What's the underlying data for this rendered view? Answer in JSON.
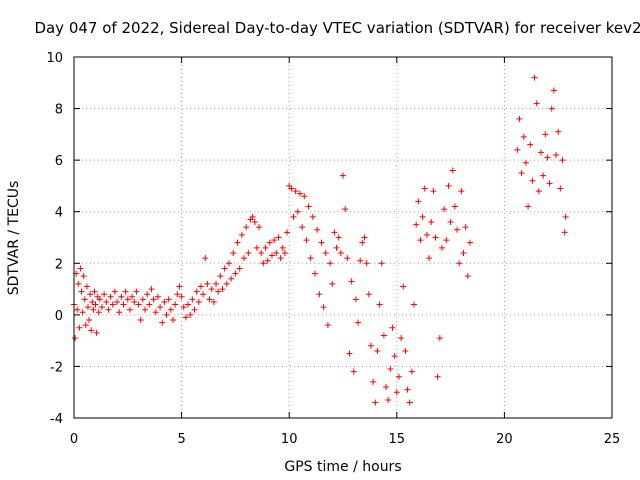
{
  "chart_data": {
    "type": "scatter",
    "title": "Day 047 of 2022, Sidereal Day-to-day VTEC variation (SDTVAR) for receiver kev2",
    "xlabel": "GPS time / hours",
    "ylabel": "SDTVAR / TECUs",
    "xlim": [
      0,
      25
    ],
    "ylim": [
      -4,
      10
    ],
    "xticks": [
      0,
      5,
      10,
      15,
      20,
      25
    ],
    "yticks": [
      -4,
      -2,
      0,
      2,
      4,
      6,
      8,
      10
    ],
    "grid": true,
    "marker": "+",
    "color": "#ff0000",
    "series": [
      {
        "name": "kev2",
        "points": [
          [
            0.0,
            0.4
          ],
          [
            0.05,
            -0.9
          ],
          [
            0.1,
            1.6
          ],
          [
            0.15,
            0.2
          ],
          [
            0.2,
            1.2
          ],
          [
            0.25,
            -0.5
          ],
          [
            0.3,
            1.8
          ],
          [
            0.35,
            0.9
          ],
          [
            0.4,
            0.1
          ],
          [
            0.45,
            1.5
          ],
          [
            0.5,
            0.6
          ],
          [
            0.55,
            -0.4
          ],
          [
            0.6,
            1.1
          ],
          [
            0.65,
            0.3
          ],
          [
            0.7,
            -0.2
          ],
          [
            0.75,
            0.8
          ],
          [
            0.8,
            -0.6
          ],
          [
            0.85,
            0.5
          ],
          [
            0.9,
            0.2
          ],
          [
            0.95,
            0.9
          ],
          [
            1.0,
            0.4
          ],
          [
            1.05,
            -0.7
          ],
          [
            1.1,
            0.7
          ],
          [
            1.15,
            0.1
          ],
          [
            1.2,
            0.6
          ],
          [
            1.3,
            0.3
          ],
          [
            1.4,
            0.8
          ],
          [
            1.5,
            0.5
          ],
          [
            1.6,
            0.2
          ],
          [
            1.7,
            0.7
          ],
          [
            1.8,
            0.4
          ],
          [
            1.9,
            0.9
          ],
          [
            2.0,
            0.5
          ],
          [
            2.1,
            0.1
          ],
          [
            2.2,
            0.7
          ],
          [
            2.3,
            0.4
          ],
          [
            2.4,
            0.9
          ],
          [
            2.5,
            0.6
          ],
          [
            2.6,
            0.2
          ],
          [
            2.7,
            0.7
          ],
          [
            2.8,
            0.5
          ],
          [
            2.9,
            0.9
          ],
          [
            3.0,
            0.4
          ],
          [
            3.1,
            -0.2
          ],
          [
            3.2,
            0.6
          ],
          [
            3.3,
            0.2
          ],
          [
            3.4,
            0.8
          ],
          [
            3.5,
            0.4
          ],
          [
            3.6,
            1.0
          ],
          [
            3.7,
            0.6
          ],
          [
            3.8,
            0.1
          ],
          [
            3.9,
            0.7
          ],
          [
            4.0,
            0.3
          ],
          [
            4.1,
            -0.3
          ],
          [
            4.2,
            0.5
          ],
          [
            4.3,
            0.0
          ],
          [
            4.4,
            0.6
          ],
          [
            4.5,
            0.2
          ],
          [
            4.6,
            -0.2
          ],
          [
            4.7,
            0.4
          ],
          [
            4.8,
            0.8
          ],
          [
            4.9,
            1.1
          ],
          [
            5.0,
            0.7
          ],
          [
            5.1,
            0.3
          ],
          [
            5.2,
            -0.1
          ],
          [
            5.3,
            0.4
          ],
          [
            5.4,
            0.0
          ],
          [
            5.5,
            0.6
          ],
          [
            5.6,
            0.2
          ],
          [
            5.7,
            0.9
          ],
          [
            5.8,
            0.5
          ],
          [
            5.9,
            1.1
          ],
          [
            6.0,
            0.8
          ],
          [
            6.1,
            2.2
          ],
          [
            6.2,
            1.2
          ],
          [
            6.3,
            0.6
          ],
          [
            6.4,
            1.0
          ],
          [
            6.5,
            0.5
          ],
          [
            6.6,
            1.2
          ],
          [
            6.7,
            0.9
          ],
          [
            6.8,
            1.5
          ],
          [
            6.9,
            1.0
          ],
          [
            7.0,
            1.8
          ],
          [
            7.1,
            1.2
          ],
          [
            7.2,
            2.0
          ],
          [
            7.3,
            1.4
          ],
          [
            7.4,
            2.4
          ],
          [
            7.5,
            1.6
          ],
          [
            7.6,
            2.8
          ],
          [
            7.7,
            1.8
          ],
          [
            7.8,
            3.1
          ],
          [
            7.9,
            2.2
          ],
          [
            8.0,
            3.4
          ],
          [
            8.1,
            2.4
          ],
          [
            8.2,
            3.7
          ],
          [
            8.3,
            3.8
          ],
          [
            8.4,
            3.6
          ],
          [
            8.5,
            2.6
          ],
          [
            8.6,
            3.4
          ],
          [
            8.7,
            2.4
          ],
          [
            8.8,
            2.0
          ],
          [
            8.9,
            2.6
          ],
          [
            9.0,
            2.1
          ],
          [
            9.1,
            2.8
          ],
          [
            9.2,
            2.3
          ],
          [
            9.3,
            2.9
          ],
          [
            9.4,
            2.4
          ],
          [
            9.5,
            3.0
          ],
          [
            9.6,
            2.2
          ],
          [
            9.7,
            2.6
          ],
          [
            9.8,
            2.4
          ],
          [
            9.9,
            3.2
          ],
          [
            10.0,
            5.0
          ],
          [
            10.1,
            4.9
          ],
          [
            10.2,
            3.8
          ],
          [
            10.3,
            4.8
          ],
          [
            10.4,
            4.0
          ],
          [
            10.5,
            4.7
          ],
          [
            10.6,
            3.4
          ],
          [
            10.7,
            4.6
          ],
          [
            10.8,
            2.9
          ],
          [
            10.9,
            4.2
          ],
          [
            11.0,
            2.2
          ],
          [
            11.1,
            3.8
          ],
          [
            11.2,
            1.6
          ],
          [
            11.3,
            3.3
          ],
          [
            11.4,
            0.8
          ],
          [
            11.5,
            2.8
          ],
          [
            11.6,
            0.3
          ],
          [
            11.7,
            2.4
          ],
          [
            11.8,
            -0.4
          ],
          [
            11.9,
            2.0
          ],
          [
            12.0,
            1.2
          ],
          [
            12.1,
            3.2
          ],
          [
            12.2,
            2.6
          ],
          [
            12.3,
            3.0
          ],
          [
            12.4,
            2.4
          ],
          [
            12.5,
            5.4
          ],
          [
            12.6,
            4.1
          ],
          [
            12.7,
            2.2
          ],
          [
            12.8,
            -1.5
          ],
          [
            12.9,
            1.3
          ],
          [
            13.0,
            -2.2
          ],
          [
            13.1,
            0.6
          ],
          [
            13.2,
            -0.3
          ],
          [
            13.3,
            2.1
          ],
          [
            13.4,
            2.8
          ],
          [
            13.5,
            3.0
          ],
          [
            13.6,
            2.0
          ],
          [
            13.7,
            0.8
          ],
          [
            13.8,
            -1.2
          ],
          [
            13.9,
            -2.6
          ],
          [
            14.0,
            -3.4
          ],
          [
            14.1,
            -1.4
          ],
          [
            14.2,
            0.4
          ],
          [
            14.3,
            2.0
          ],
          [
            14.4,
            -0.8
          ],
          [
            14.5,
            -2.8
          ],
          [
            14.6,
            -3.3
          ],
          [
            14.7,
            -2.1
          ],
          [
            14.8,
            -0.5
          ],
          [
            14.9,
            -1.6
          ],
          [
            15.0,
            -3.0
          ],
          [
            15.1,
            -2.4
          ],
          [
            15.2,
            -0.9
          ],
          [
            15.3,
            1.1
          ],
          [
            15.4,
            -1.4
          ],
          [
            15.5,
            -2.9
          ],
          [
            15.6,
            -3.4
          ],
          [
            15.7,
            -2.2
          ],
          [
            15.8,
            0.4
          ],
          [
            15.9,
            3.5
          ],
          [
            16.0,
            4.4
          ],
          [
            16.1,
            2.9
          ],
          [
            16.2,
            3.8
          ],
          [
            16.3,
            4.9
          ],
          [
            16.4,
            3.1
          ],
          [
            16.5,
            2.2
          ],
          [
            16.6,
            3.6
          ],
          [
            16.7,
            4.8
          ],
          [
            16.8,
            3.0
          ],
          [
            16.9,
            -2.4
          ],
          [
            17.0,
            -0.9
          ],
          [
            17.1,
            2.6
          ],
          [
            17.2,
            4.1
          ],
          [
            17.3,
            2.9
          ],
          [
            17.4,
            5.0
          ],
          [
            17.5,
            3.6
          ],
          [
            17.6,
            5.6
          ],
          [
            17.7,
            4.2
          ],
          [
            17.8,
            3.3
          ],
          [
            17.9,
            2.0
          ],
          [
            18.0,
            4.8
          ],
          [
            18.1,
            2.4
          ],
          [
            18.2,
            3.4
          ],
          [
            18.3,
            1.5
          ],
          [
            18.4,
            2.8
          ],
          [
            20.6,
            6.4
          ],
          [
            20.7,
            7.6
          ],
          [
            20.8,
            5.5
          ],
          [
            20.9,
            6.9
          ],
          [
            21.0,
            5.9
          ],
          [
            21.1,
            4.2
          ],
          [
            21.2,
            6.6
          ],
          [
            21.3,
            5.2
          ],
          [
            21.4,
            9.2
          ],
          [
            21.5,
            8.2
          ],
          [
            21.6,
            4.8
          ],
          [
            21.7,
            6.3
          ],
          [
            21.8,
            5.4
          ],
          [
            21.9,
            7.0
          ],
          [
            22.0,
            6.1
          ],
          [
            22.1,
            5.1
          ],
          [
            22.2,
            8.0
          ],
          [
            22.3,
            8.7
          ],
          [
            22.4,
            6.2
          ],
          [
            22.5,
            7.1
          ],
          [
            22.6,
            4.9
          ],
          [
            22.7,
            6.0
          ],
          [
            22.8,
            3.2
          ],
          [
            22.85,
            3.8
          ]
        ]
      }
    ]
  }
}
